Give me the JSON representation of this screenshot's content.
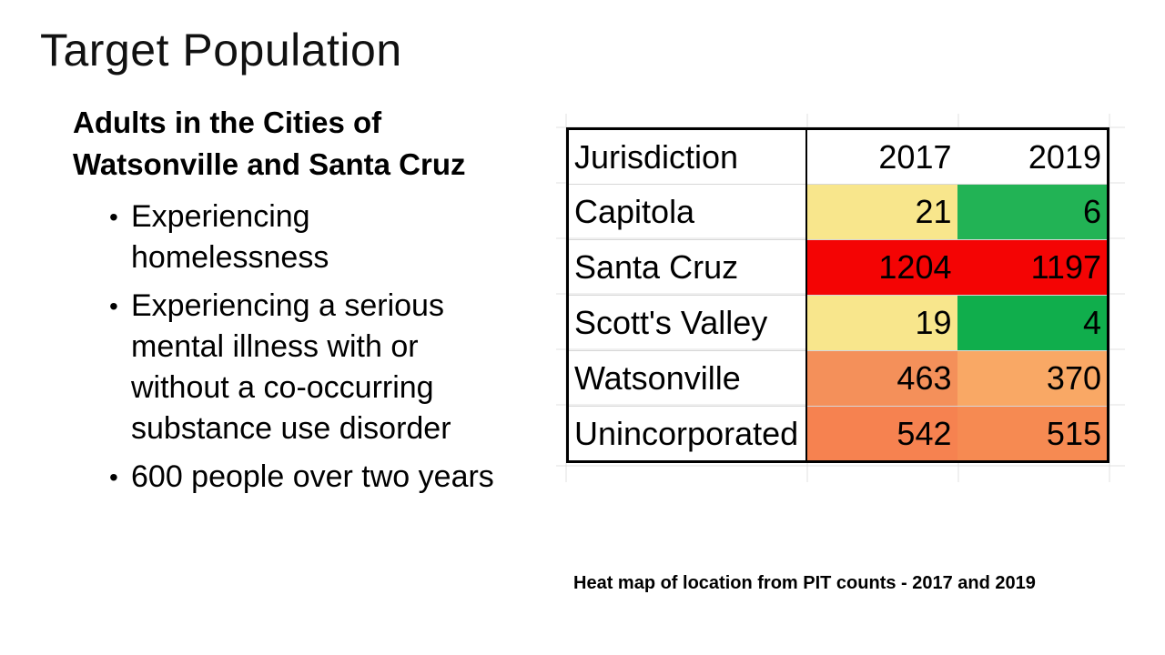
{
  "slide": {
    "title": "Target Population",
    "subtitle_line1": "Adults in the Cities of",
    "subtitle_line2": "Watsonville and Santa Cruz",
    "bullets": [
      "Experiencing homelessness",
      "Experiencing a serious mental illness with or without a co-occurring substance use disorder",
      "600 people over two years"
    ],
    "caption": "Heat map of location from PIT counts - 2017 and 2019"
  },
  "chart_data": {
    "type": "heatmap",
    "columns": [
      "Jurisdiction",
      "2017",
      "2019"
    ],
    "rows": [
      {
        "name": "Capitola",
        "values": [
          21,
          6
        ],
        "colors": [
          "#f8e68c",
          "#22b355"
        ]
      },
      {
        "name": "Santa Cruz",
        "values": [
          1204,
          1197
        ],
        "colors": [
          "#f40404",
          "#f40404"
        ]
      },
      {
        "name": "Scott's Valley",
        "values": [
          19,
          4
        ],
        "colors": [
          "#f8e68c",
          "#10ae4c"
        ]
      },
      {
        "name": "Watsonville",
        "values": [
          463,
          370
        ],
        "colors": [
          "#f4905a",
          "#f9a865"
        ]
      },
      {
        "name": "Unincorporated",
        "values": [
          542,
          515
        ],
        "colors": [
          "#f68250",
          "#f68a52"
        ]
      }
    ]
  }
}
